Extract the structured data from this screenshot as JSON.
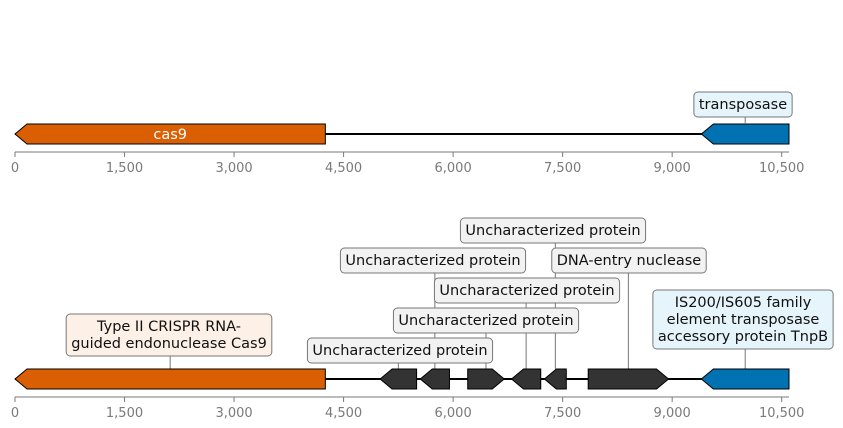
{
  "colors": {
    "cas9": "#d95f02",
    "transposase": "#0072b2",
    "uncharacterized": "#333333",
    "backbone": "#000000",
    "axis": "#7a7a7a",
    "label_fill_orange": "#fdf0e6",
    "label_fill_blue": "#e6f4fb",
    "label_fill_gray": "#f2f2f2",
    "label_stroke": "#777777"
  },
  "axis": {
    "min": 0,
    "max": 10600,
    "ticks": [
      0,
      1500,
      3000,
      4500,
      6000,
      7500,
      9000,
      10500
    ],
    "tick_labels": [
      "0",
      "1,500",
      "3,000",
      "4,500",
      "6,000",
      "7,500",
      "9,000",
      "10,500"
    ]
  },
  "tracks": [
    {
      "id": "top",
      "genes": [
        {
          "id": "cas9",
          "start": 0,
          "end": 4250,
          "strand": -1,
          "color_key": "cas9",
          "inline_label": "cas9"
        },
        {
          "id": "transposase",
          "start": 9400,
          "end": 10600,
          "strand": -1,
          "color_key": "transposase",
          "label_lines": [
            "transposase"
          ],
          "label_fill_key": "label_fill_blue",
          "label_anchor": 10000
        }
      ]
    },
    {
      "id": "bottom",
      "genes": [
        {
          "id": "cas9-full",
          "start": 0,
          "end": 4250,
          "strand": -1,
          "color_key": "cas9",
          "label_lines": [
            "Type II CRISPR RNA-",
            "guided endonuclease Cas9"
          ],
          "label_fill_key": "label_fill_orange",
          "label_anchor": 2125
        },
        {
          "id": "unc-1",
          "start": 5000,
          "end": 5500,
          "strand": -1,
          "color_key": "uncharacterized",
          "label_lines": [
            "Uncharacterized protein"
          ],
          "label_fill_key": "label_fill_gray",
          "label_anchor": 5250
        },
        {
          "id": "unc-2",
          "start": 5550,
          "end": 5950,
          "strand": -1,
          "color_key": "uncharacterized",
          "label_lines": [
            "Uncharacterized protein"
          ],
          "label_fill_key": "label_fill_gray",
          "label_anchor": 5750
        },
        {
          "id": "unc-3",
          "start": 6200,
          "end": 6700,
          "strand": 1,
          "color_key": "uncharacterized",
          "label_lines": [
            "Uncharacterized protein"
          ],
          "label_fill_key": "label_fill_gray",
          "label_anchor": 6450
        },
        {
          "id": "unc-4",
          "start": 6800,
          "end": 7200,
          "strand": -1,
          "color_key": "uncharacterized",
          "label_lines": [
            "Uncharacterized protein"
          ],
          "label_fill_key": "label_fill_gray",
          "label_anchor": 7000
        },
        {
          "id": "unc-5",
          "start": 7250,
          "end": 7550,
          "strand": -1,
          "color_key": "uncharacterized",
          "label_lines": [
            "Uncharacterized protein"
          ],
          "label_fill_key": "label_fill_gray",
          "label_anchor": 7400
        },
        {
          "id": "dna-entry-nuclease",
          "start": 7850,
          "end": 8950,
          "strand": 1,
          "color_key": "uncharacterized",
          "label_lines": [
            "DNA-entry nuclease"
          ],
          "label_fill_key": "label_fill_gray",
          "label_anchor": 8400
        },
        {
          "id": "tnpb",
          "start": 9400,
          "end": 10600,
          "strand": -1,
          "color_key": "transposase",
          "label_lines": [
            "IS200/IS605 family",
            "element transposase",
            "accessory protein TnpB"
          ],
          "label_fill_key": "label_fill_blue",
          "label_anchor": 10000
        }
      ]
    }
  ]
}
